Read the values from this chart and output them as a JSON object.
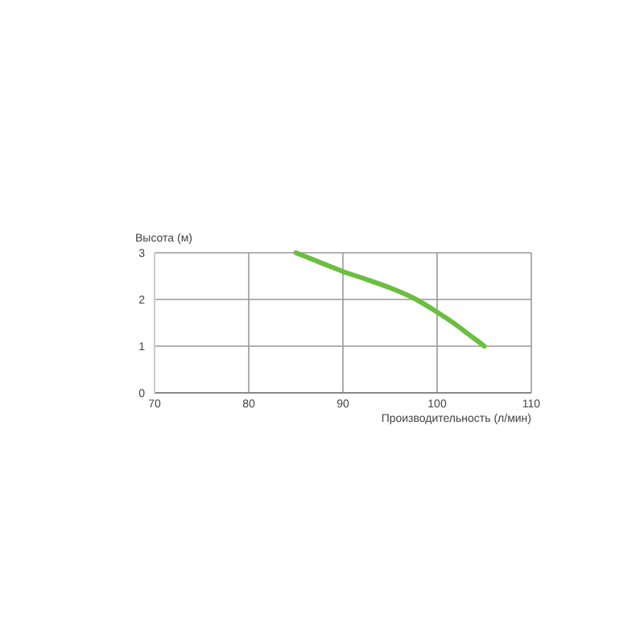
{
  "chart_data": {
    "type": "line",
    "xlabel": "Производительность (л/мин)",
    "ylabel": "Высота (м)",
    "x": [
      85,
      87.5,
      90,
      92.5,
      95,
      97.5,
      100,
      102,
      103.5,
      104.5,
      105
    ],
    "series": [
      {
        "color": "#6abf3e",
        "values": [
          3,
          2.8,
          2.6,
          2.43,
          2.25,
          2.03,
          1.73,
          1.46,
          1.23,
          1.08,
          1.0
        ]
      }
    ],
    "xlim": [
      70,
      110
    ],
    "xticks": [
      70,
      80,
      90,
      100,
      110
    ],
    "ylim": [
      0,
      3
    ],
    "yticks": [
      0,
      1,
      2,
      3
    ],
    "grid": true,
    "marker": "none",
    "line_style": "solid"
  }
}
